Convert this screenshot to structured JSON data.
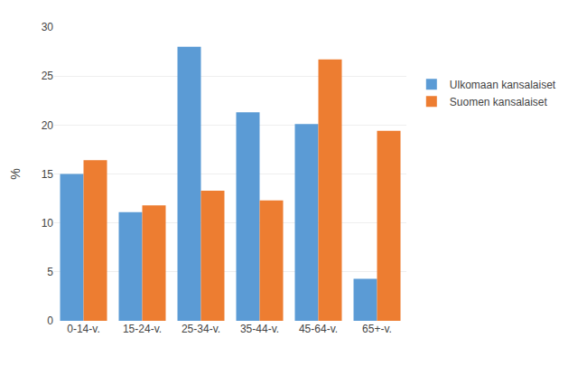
{
  "chart_data": {
    "type": "bar",
    "categories": [
      "0-14-v.",
      "15-24-v.",
      "25-34-v.",
      "35-44-v.",
      "45-64-v.",
      "65+-v."
    ],
    "series": [
      {
        "name": "Ulkomaan kansalaiset",
        "color": "#5B9BD5",
        "values": [
          15.0,
          11.1,
          28.0,
          21.3,
          20.1,
          4.3
        ]
      },
      {
        "name": "Suomen kansalaiset",
        "color": "#ED7D31",
        "values": [
          16.4,
          11.8,
          13.3,
          12.3,
          26.7,
          19.4
        ]
      }
    ],
    "ylabel": "%",
    "ylim": [
      0,
      30
    ],
    "yticks": [
      0,
      5,
      10,
      15,
      20,
      25,
      30
    ],
    "grid": true,
    "legend": "right"
  }
}
